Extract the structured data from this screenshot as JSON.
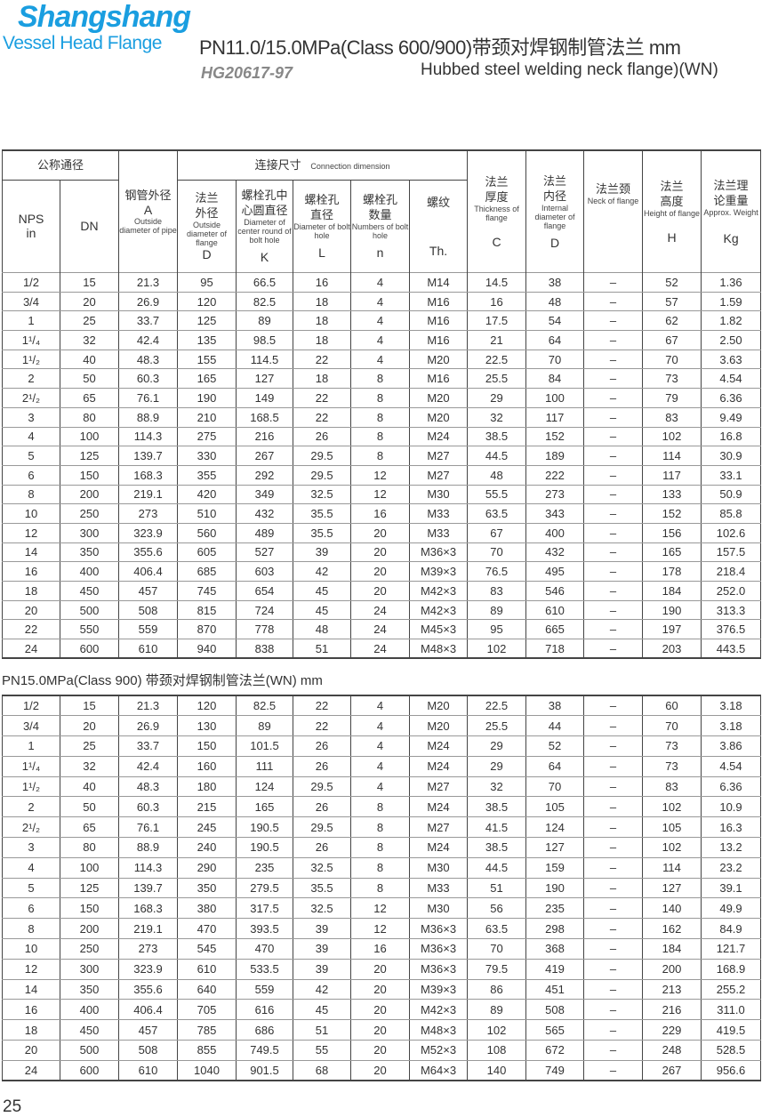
{
  "logo": {
    "brand": "Shangshang",
    "tagline": "Vessel Head Flange"
  },
  "header": {
    "title": "PN11.0/15.0MPa(Class 600/900)带颈对焊钢制管法兰  mm",
    "standard": "HG20617-97",
    "subtitle": "Hubbed steel welding neck flange)(WN)"
  },
  "columns": {
    "nominal": "公称通径",
    "nps": "NPS",
    "nps_unit": "in",
    "dn": "DN",
    "pipe_cn": "钢管外径",
    "pipe_sym": "A",
    "pipe_en": "Outside diameter of pipe",
    "conn_cn": "连接尺寸",
    "conn_en": "Connection dimension",
    "od_cn": "法兰外径",
    "od_en": "Outside diameter of flange",
    "od_sym": "D",
    "k_cn": "螺栓孔中心圆直径",
    "k_en": "Diameter of center round of bolt hole",
    "k_sym": "K",
    "l_cn": "螺栓孔直径",
    "l_en": "Diameter of bolt hole",
    "l_sym": "L",
    "n_cn": "螺栓孔数量",
    "n_en": "Numbers of bolt hole",
    "n_sym": "n",
    "th_cn": "螺纹",
    "th_sym": "Th.",
    "c_cn": "法兰厚度",
    "c_en": "Thickness of flange",
    "c_sym": "C",
    "id_cn": "法兰内径",
    "id_en": "Internal diameter of flange",
    "id_sym": "D",
    "neck_cn": "法兰颈",
    "neck_en": "Neck of flange",
    "h_cn": "法兰高度",
    "h_en": "Height of flange",
    "h_sym": "H",
    "w_cn": "法兰理论重量",
    "w_en": "Approx. Weight",
    "w_sym": "Kg"
  },
  "table1": [
    [
      "1/2",
      "15",
      "21.3",
      "95",
      "66.5",
      "16",
      "4",
      "M14",
      "14.5",
      "38",
      "–",
      "52",
      "1.36"
    ],
    [
      "3/4",
      "20",
      "26.9",
      "120",
      "82.5",
      "18",
      "4",
      "M16",
      "16",
      "48",
      "–",
      "57",
      "1.59"
    ],
    [
      "1",
      "25",
      "33.7",
      "125",
      "89",
      "18",
      "4",
      "M16",
      "17.5",
      "54",
      "–",
      "62",
      "1.82"
    ],
    [
      "1¹/₄",
      "32",
      "42.4",
      "135",
      "98.5",
      "18",
      "4",
      "M16",
      "21",
      "64",
      "–",
      "67",
      "2.50"
    ],
    [
      "1¹/₂",
      "40",
      "48.3",
      "155",
      "114.5",
      "22",
      "4",
      "M20",
      "22.5",
      "70",
      "–",
      "70",
      "3.63"
    ],
    [
      "2",
      "50",
      "60.3",
      "165",
      "127",
      "18",
      "8",
      "M16",
      "25.5",
      "84",
      "–",
      "73",
      "4.54"
    ],
    [
      "2¹/₂",
      "65",
      "76.1",
      "190",
      "149",
      "22",
      "8",
      "M20",
      "29",
      "100",
      "–",
      "79",
      "6.36"
    ],
    [
      "3",
      "80",
      "88.9",
      "210",
      "168.5",
      "22",
      "8",
      "M20",
      "32",
      "117",
      "–",
      "83",
      "9.49"
    ],
    [
      "4",
      "100",
      "114.3",
      "275",
      "216",
      "26",
      "8",
      "M24",
      "38.5",
      "152",
      "–",
      "102",
      "16.8"
    ],
    [
      "5",
      "125",
      "139.7",
      "330",
      "267",
      "29.5",
      "8",
      "M27",
      "44.5",
      "189",
      "–",
      "114",
      "30.9"
    ],
    [
      "6",
      "150",
      "168.3",
      "355",
      "292",
      "29.5",
      "12",
      "M27",
      "48",
      "222",
      "–",
      "117",
      "33.1"
    ],
    [
      "8",
      "200",
      "219.1",
      "420",
      "349",
      "32.5",
      "12",
      "M30",
      "55.5",
      "273",
      "–",
      "133",
      "50.9"
    ],
    [
      "10",
      "250",
      "273",
      "510",
      "432",
      "35.5",
      "16",
      "M33",
      "63.5",
      "343",
      "–",
      "152",
      "85.8"
    ],
    [
      "12",
      "300",
      "323.9",
      "560",
      "489",
      "35.5",
      "20",
      "M33",
      "67",
      "400",
      "–",
      "156",
      "102.6"
    ],
    [
      "14",
      "350",
      "355.6",
      "605",
      "527",
      "39",
      "20",
      "M36×3",
      "70",
      "432",
      "–",
      "165",
      "157.5"
    ],
    [
      "16",
      "400",
      "406.4",
      "685",
      "603",
      "42",
      "20",
      "M39×3",
      "76.5",
      "495",
      "–",
      "178",
      "218.4"
    ],
    [
      "18",
      "450",
      "457",
      "745",
      "654",
      "45",
      "20",
      "M42×3",
      "83",
      "546",
      "–",
      "184",
      "252.0"
    ],
    [
      "20",
      "500",
      "508",
      "815",
      "724",
      "45",
      "24",
      "M42×3",
      "89",
      "610",
      "–",
      "190",
      "313.3"
    ],
    [
      "22",
      "550",
      "559",
      "870",
      "778",
      "48",
      "24",
      "M45×3",
      "95",
      "665",
      "–",
      "197",
      "376.5"
    ],
    [
      "24",
      "600",
      "610",
      "940",
      "838",
      "51",
      "24",
      "M48×3",
      "102",
      "718",
      "–",
      "203",
      "443.5"
    ]
  ],
  "section2_title": "PN15.0MPa(Class 900) 带颈对焊钢制管法兰(WN)  mm",
  "table2": [
    [
      "1/2",
      "15",
      "21.3",
      "120",
      "82.5",
      "22",
      "4",
      "M20",
      "22.5",
      "38",
      "–",
      "60",
      "3.18"
    ],
    [
      "3/4",
      "20",
      "26.9",
      "130",
      "89",
      "22",
      "4",
      "M20",
      "25.5",
      "44",
      "–",
      "70",
      "3.18"
    ],
    [
      "1",
      "25",
      "33.7",
      "150",
      "101.5",
      "26",
      "4",
      "M24",
      "29",
      "52",
      "–",
      "73",
      "3.86"
    ],
    [
      "1¹/₄",
      "32",
      "42.4",
      "160",
      "111",
      "26",
      "4",
      "M24",
      "29",
      "64",
      "–",
      "73",
      "4.54"
    ],
    [
      "1¹/₂",
      "40",
      "48.3",
      "180",
      "124",
      "29.5",
      "4",
      "M27",
      "32",
      "70",
      "–",
      "83",
      "6.36"
    ],
    [
      "2",
      "50",
      "60.3",
      "215",
      "165",
      "26",
      "8",
      "M24",
      "38.5",
      "105",
      "–",
      "102",
      "10.9"
    ],
    [
      "2¹/₂",
      "65",
      "76.1",
      "245",
      "190.5",
      "29.5",
      "8",
      "M27",
      "41.5",
      "124",
      "–",
      "105",
      "16.3"
    ],
    [
      "3",
      "80",
      "88.9",
      "240",
      "190.5",
      "26",
      "8",
      "M24",
      "38.5",
      "127",
      "–",
      "102",
      "13.2"
    ],
    [
      "4",
      "100",
      "114.3",
      "290",
      "235",
      "32.5",
      "8",
      "M30",
      "44.5",
      "159",
      "–",
      "114",
      "23.2"
    ],
    [
      "5",
      "125",
      "139.7",
      "350",
      "279.5",
      "35.5",
      "8",
      "M33",
      "51",
      "190",
      "–",
      "127",
      "39.1"
    ],
    [
      "6",
      "150",
      "168.3",
      "380",
      "317.5",
      "32.5",
      "12",
      "M30",
      "56",
      "235",
      "–",
      "140",
      "49.9"
    ],
    [
      "8",
      "200",
      "219.1",
      "470",
      "393.5",
      "39",
      "12",
      "M36×3",
      "63.5",
      "298",
      "–",
      "162",
      "84.9"
    ],
    [
      "10",
      "250",
      "273",
      "545",
      "470",
      "39",
      "16",
      "M36×3",
      "70",
      "368",
      "–",
      "184",
      "121.7"
    ],
    [
      "12",
      "300",
      "323.9",
      "610",
      "533.5",
      "39",
      "20",
      "M36×3",
      "79.5",
      "419",
      "–",
      "200",
      "168.9"
    ],
    [
      "14",
      "350",
      "355.6",
      "640",
      "559",
      "42",
      "20",
      "M39×3",
      "86",
      "451",
      "–",
      "213",
      "255.2"
    ],
    [
      "16",
      "400",
      "406.4",
      "705",
      "616",
      "45",
      "20",
      "M42×3",
      "89",
      "508",
      "–",
      "216",
      "311.0"
    ],
    [
      "18",
      "450",
      "457",
      "785",
      "686",
      "51",
      "20",
      "M48×3",
      "102",
      "565",
      "–",
      "229",
      "419.5"
    ],
    [
      "20",
      "500",
      "508",
      "855",
      "749.5",
      "55",
      "20",
      "M52×3",
      "108",
      "672",
      "–",
      "248",
      "528.5"
    ],
    [
      "24",
      "600",
      "610",
      "1040",
      "901.5",
      "68",
      "20",
      "M64×3",
      "140",
      "749",
      "–",
      "267",
      "956.6"
    ]
  ],
  "page_number": "25"
}
